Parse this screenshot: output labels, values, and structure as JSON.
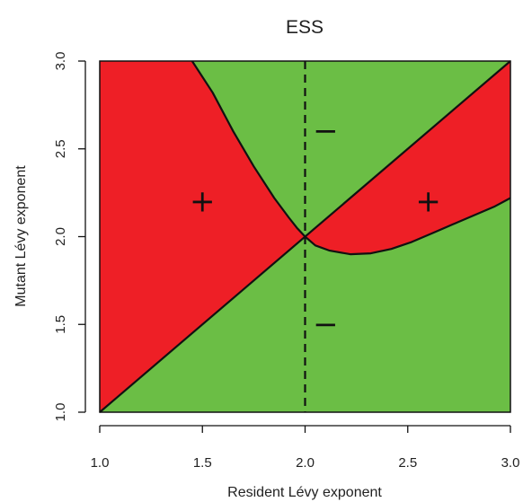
{
  "chart_data": {
    "type": "area",
    "title": "ESS",
    "xlabel": "Resident Lévy exponent",
    "ylabel": "Mutant Lévy exponent",
    "xlim": [
      1.0,
      3.0
    ],
    "ylim": [
      1.0,
      3.0
    ],
    "xticks": [
      "1.0",
      "1.5",
      "2.0",
      "2.5",
      "3.0"
    ],
    "yticks": [
      "1.0",
      "1.5",
      "2.0",
      "2.5",
      "3.0"
    ],
    "grid": false,
    "colors": {
      "positive": "#EE1F26",
      "negative": "#6BBE45",
      "boundary": "#111111"
    },
    "diagonal": {
      "x": [
        1.0,
        3.0
      ],
      "y": [
        1.0,
        3.0
      ]
    },
    "ess_line": {
      "x": 2.0,
      "style": "dashed"
    },
    "boundary_curve": {
      "x": [
        1.45,
        1.55,
        1.65,
        1.75,
        1.85,
        1.92,
        1.96,
        2.0,
        2.05,
        2.12,
        2.22,
        2.32,
        2.42,
        2.52,
        2.62,
        2.72,
        2.82,
        2.92,
        3.0
      ],
      "y": [
        3.0,
        2.82,
        2.6,
        2.4,
        2.22,
        2.11,
        2.05,
        2.0,
        1.95,
        1.92,
        1.9,
        1.905,
        1.93,
        1.97,
        2.02,
        2.07,
        2.12,
        2.17,
        2.22
      ]
    },
    "region_labels": [
      {
        "text": "+",
        "x": 1.5,
        "y": 2.2
      },
      {
        "text": "+",
        "x": 2.6,
        "y": 2.2
      },
      {
        "text": "−",
        "x": 2.1,
        "y": 2.6
      },
      {
        "text": "−",
        "x": 2.1,
        "y": 1.5
      }
    ]
  }
}
